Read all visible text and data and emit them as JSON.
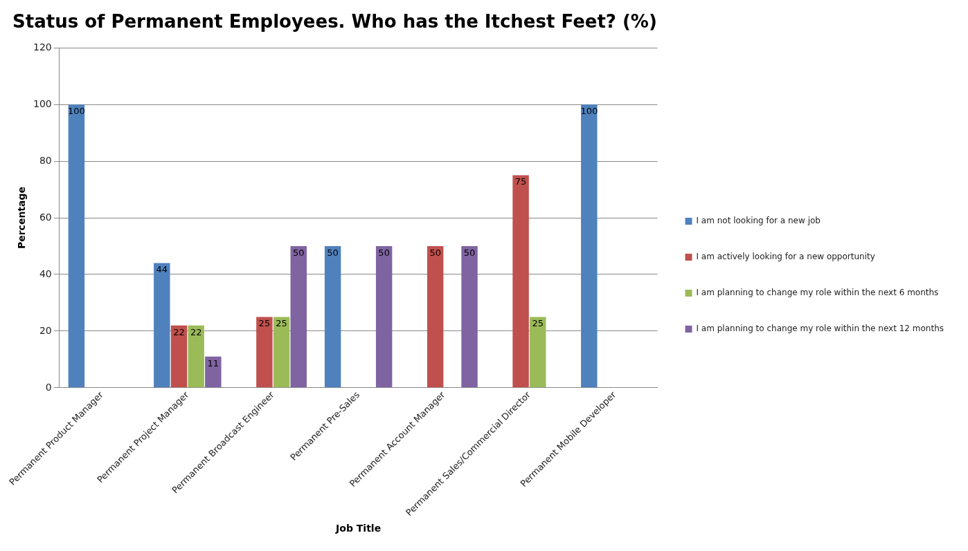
{
  "chart_data": {
    "type": "bar",
    "title": "Status of Permanent Employees. Who has the Itchest Feet? (%)",
    "xlabel": "Job Title",
    "ylabel": "Percentage",
    "categories": [
      "Permanent Product Manager",
      "Permanent Project Manager",
      "Permanent Broadcast Engineer",
      "Permanent Pre-Sales",
      "Permanent Account Manager",
      "Permanent Sales/Commercial Director",
      "Permanent Mobile Developer"
    ],
    "series": [
      {
        "name": "I am not looking for a new job",
        "color": "#4f81bd",
        "values": [
          100,
          44,
          null,
          50,
          null,
          null,
          100
        ]
      },
      {
        "name": "I am actively looking for a new opportunity",
        "color": "#c0504d",
        "values": [
          null,
          22,
          25,
          null,
          50,
          75,
          null
        ]
      },
      {
        "name": "I am planning to change my role within the next 6 months",
        "color": "#9bbb59",
        "values": [
          null,
          22,
          25,
          null,
          null,
          25,
          null
        ]
      },
      {
        "name": "I am planning to change my role within the next 12 months",
        "color": "#8064a2",
        "values": [
          null,
          11,
          50,
          50,
          50,
          null,
          null
        ]
      }
    ],
    "ylim": [
      0,
      120
    ],
    "yticks": [
      0,
      20,
      40,
      60,
      80,
      100,
      120
    ],
    "grid": "y",
    "legend": "right",
    "data_labels": true
  }
}
